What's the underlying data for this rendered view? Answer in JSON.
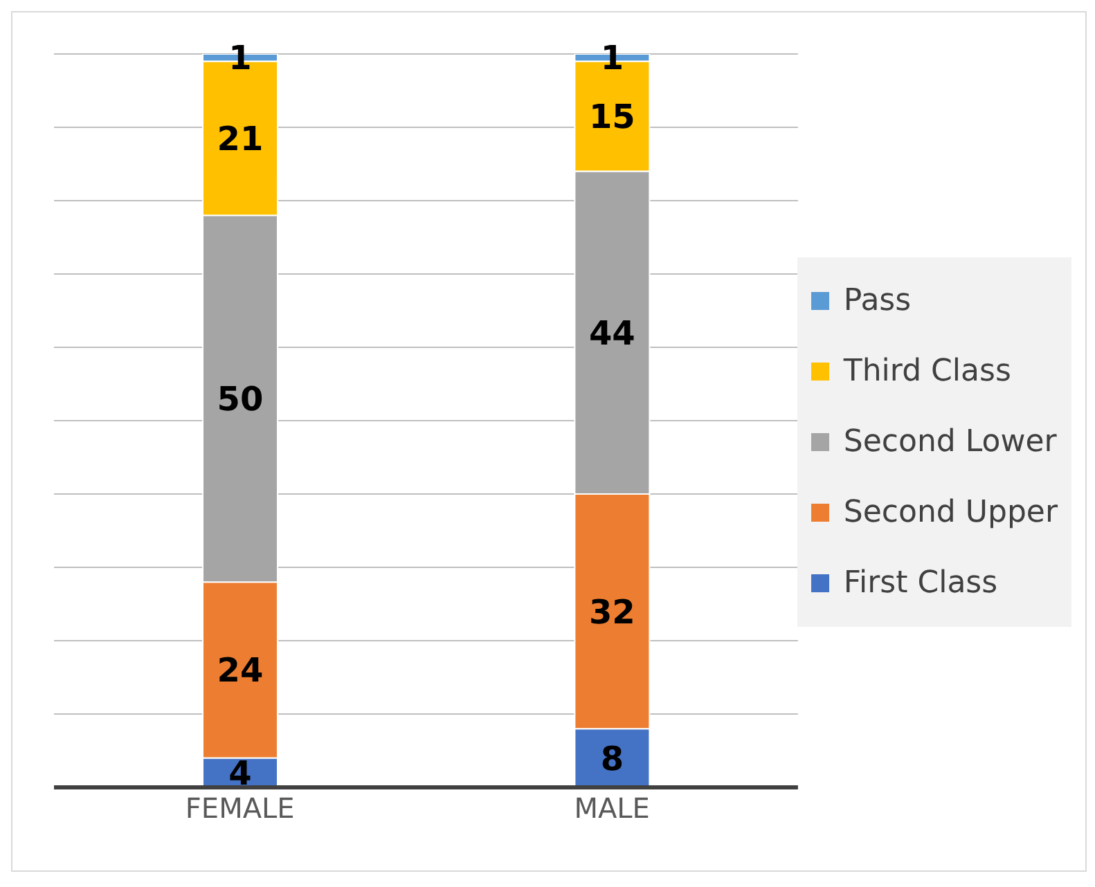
{
  "chart_data": {
    "type": "bar",
    "stacked": true,
    "categories": [
      "FEMALE",
      "MALE"
    ],
    "series": [
      {
        "name": "First Class",
        "color": "#4472c4",
        "values": [
          4,
          8
        ]
      },
      {
        "name": "Second Upper",
        "color": "#ed7d31",
        "values": [
          24,
          32
        ]
      },
      {
        "name": "Second Lower",
        "color": "#a5a5a5",
        "values": [
          50,
          44
        ]
      },
      {
        "name": "Third Class",
        "color": "#ffc000",
        "values": [
          21,
          15
        ]
      },
      {
        "name": "Pass",
        "color": "#5b9bd5",
        "values": [
          1,
          1
        ]
      }
    ],
    "ylim": [
      0,
      100
    ],
    "yticks": [
      {
        "value": 0,
        "label": null
      },
      {
        "value": 10,
        "label": null
      },
      {
        "value": 20,
        "label": null
      },
      {
        "value": 30,
        "label": null
      },
      {
        "value": 40,
        "label": null
      },
      {
        "value": 50,
        "label": null
      },
      {
        "value": 60,
        "label": null
      },
      {
        "value": 70,
        "label": null
      },
      {
        "value": 80,
        "label": null
      },
      {
        "value": 90,
        "label": null
      },
      {
        "value": 100,
        "label": null
      }
    ],
    "tick_labels": "x",
    "grid": "y",
    "legend": "right",
    "data_labels": true
  }
}
